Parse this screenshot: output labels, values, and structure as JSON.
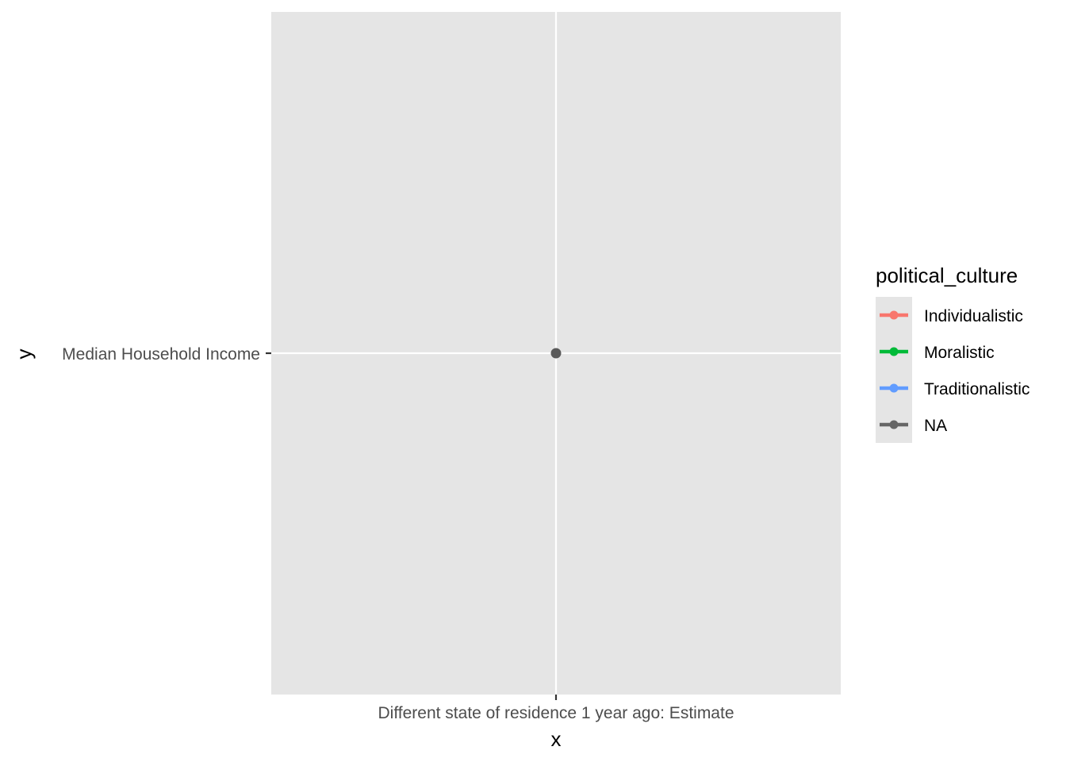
{
  "chart_data": {
    "type": "scatter",
    "x_categories": [
      "Different state of residence 1 year ago: Estimate"
    ],
    "y_categories": [
      "Median Household Income"
    ],
    "xlabel": "x",
    "ylabel": "y",
    "grid": true,
    "points": [
      {
        "x": "Different state of residence 1 year ago: Estimate",
        "y": "Median Household Income",
        "group": "NA"
      }
    ],
    "legend": {
      "title": "political_culture",
      "position": "right",
      "entries": [
        {
          "label": "Individualistic",
          "color": "#F8766D"
        },
        {
          "label": "Moralistic",
          "color": "#00BA38"
        },
        {
          "label": "Traditionalistic",
          "color": "#619CFF"
        },
        {
          "label": "NA",
          "color": "#666666"
        }
      ]
    },
    "colors": {
      "panel_background": "#E5E5E5",
      "grid": "#FFFFFF",
      "point": "#595959"
    }
  }
}
